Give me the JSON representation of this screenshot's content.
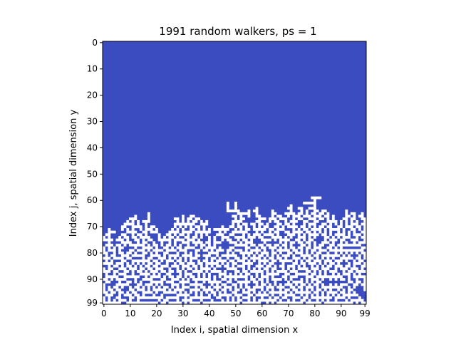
{
  "chart_data": {
    "type": "heatmap",
    "title": "1991 random walkers, ps = 1",
    "xlabel": "Index i, spatial dimension x",
    "ylabel": "Index j, spatial dimension y",
    "grid_size": [
      100,
      100
    ],
    "xlim": [
      0,
      99
    ],
    "ylim": [
      99,
      0
    ],
    "x_ticks": [
      0,
      10,
      20,
      30,
      40,
      50,
      60,
      70,
      80,
      90,
      99
    ],
    "y_ticks": [
      0,
      10,
      20,
      30,
      40,
      50,
      60,
      70,
      80,
      90,
      99
    ],
    "colors": {
      "empty": "#3a4cc0",
      "occupied": "#ffffff"
    },
    "occupied_cells": 1991,
    "grid": false,
    "legend": "none"
  }
}
